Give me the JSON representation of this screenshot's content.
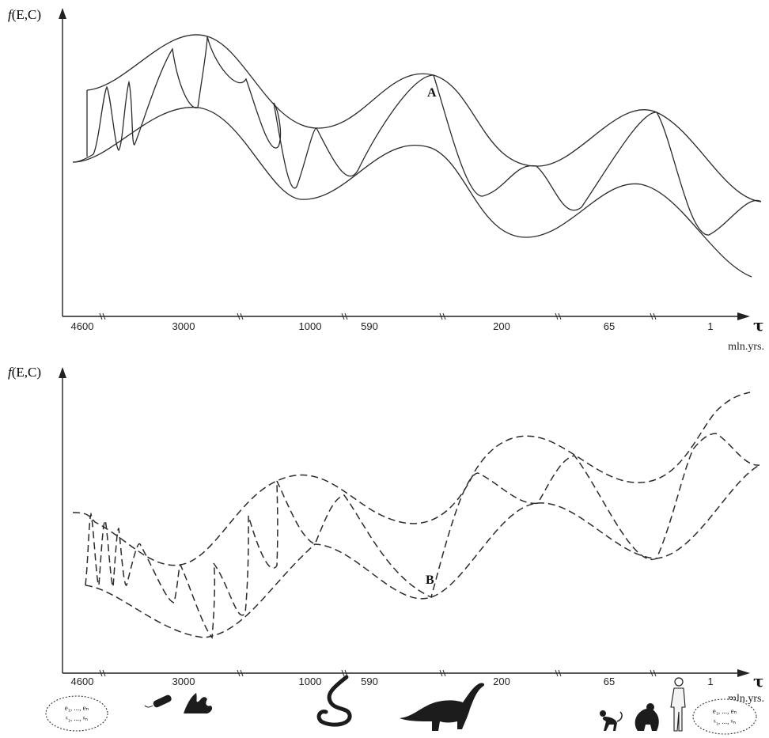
{
  "top_panel": {
    "y_label_f": "f",
    "y_label_rest": "(E,C)",
    "tick_labels": [
      "4600",
      "3000",
      "1000",
      "590",
      "200",
      "65",
      "1"
    ],
    "x_symbol": "τ",
    "x_unit": "mln.yrs.",
    "point_label": "A"
  },
  "bottom_panel": {
    "y_label_f": "f",
    "y_label_rest": "(E,C)",
    "tick_labels": [
      "4600",
      "3000",
      "1000",
      "590",
      "200",
      "65",
      "1"
    ],
    "x_symbol": "τ",
    "x_unit": "mln.yrs.",
    "point_label": "B"
  },
  "icons": {
    "start_oval_line1": "e₁, ..., eₙ",
    "start_oval_line2": "ᵍ₁, ..., ᵍₙ",
    "end_oval_line1": "e₁, ..., eₙ",
    "end_oval_line2": "ᵍ₁, ..., ᵍₙ"
  }
}
